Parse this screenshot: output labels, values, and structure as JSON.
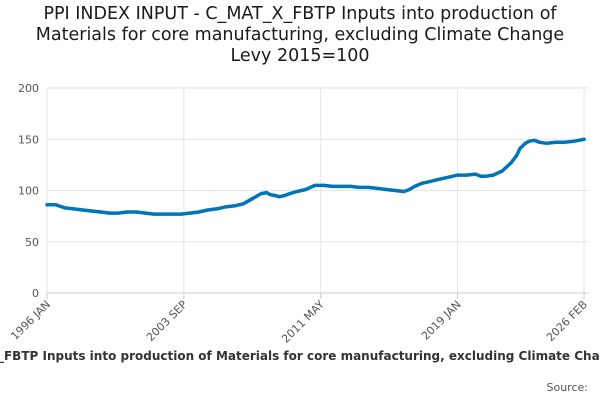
{
  "chart_data": {
    "type": "line",
    "title": "PPI INDEX INPUT - C_MAT_X_FBTP Inputs into production of Materials for core manufacturing, excluding Climate Change Levy 2015=100",
    "title_lines": [
      "PPI INDEX INPUT - C_MAT_X_FBTP Inputs into production of",
      "Materials for core manufacturing, excluding Climate Change",
      "Levy 2015=100"
    ],
    "xlabel": "",
    "ylabel": "",
    "ylim": [
      0,
      200
    ],
    "yticks": [
      0,
      50,
      100,
      150,
      200
    ],
    "grid": true,
    "x_range_years": [
      1996.0,
      2026.083
    ],
    "xticks": [
      {
        "label": "1996 JAN",
        "year": 1996.0
      },
      {
        "label": "2003 SEP",
        "year": 2003.667
      },
      {
        "label": "2011 MAY",
        "year": 2011.333
      },
      {
        "label": "2019 JAN",
        "year": 2019.0
      },
      {
        "label": "2026 FEB",
        "year": 2026.083
      }
    ],
    "series": [
      {
        "name": "C_MAT_X_FBTP Inputs into production of Materials for core manufacturing, excluding Climate Change Levy",
        "color": "#0075b9",
        "x": [
          1996.0,
          1996.5,
          1997.0,
          1997.5,
          1998.0,
          1998.5,
          1999.0,
          1999.5,
          2000.0,
          2000.5,
          2001.0,
          2001.5,
          2002.0,
          2002.5,
          2003.0,
          2003.5,
          2004.0,
          2004.5,
          2005.0,
          2005.5,
          2006.0,
          2006.5,
          2007.0,
          2007.5,
          2008.0,
          2008.3,
          2008.5,
          2008.8,
          2009.0,
          2009.3,
          2009.6,
          2010.0,
          2010.5,
          2011.0,
          2011.5,
          2012.0,
          2012.5,
          2013.0,
          2013.5,
          2014.0,
          2014.5,
          2015.0,
          2015.5,
          2016.0,
          2016.3,
          2016.6,
          2017.0,
          2017.5,
          2018.0,
          2018.5,
          2019.0,
          2019.5,
          2020.0,
          2020.3,
          2020.6,
          2021.0,
          2021.5,
          2022.0,
          2022.3,
          2022.5,
          2022.8,
          2023.0,
          2023.3,
          2023.6,
          2024.0,
          2024.5,
          2025.0,
          2025.5,
          2026.083
        ],
        "values": [
          86,
          86,
          83,
          82,
          81,
          80,
          79,
          78,
          78,
          79,
          79,
          78,
          77,
          77,
          77,
          77,
          78,
          79,
          81,
          82,
          84,
          85,
          87,
          92,
          97,
          98,
          96,
          95,
          94,
          95,
          97,
          99,
          101,
          105,
          105,
          104,
          104,
          104,
          103,
          103,
          102,
          101,
          100,
          99,
          101,
          104,
          107,
          109,
          111,
          113,
          115,
          115,
          116,
          114,
          114,
          115,
          119,
          127,
          134,
          141,
          146,
          148,
          149,
          147,
          146,
          147,
          147,
          148,
          150
        ]
      }
    ]
  },
  "legend": {
    "label": "C_MAT_X_FBTP Inputs into production of Materials for core manufacturing, excluding Climate Change Levy"
  },
  "source": {
    "label": "Source:"
  }
}
